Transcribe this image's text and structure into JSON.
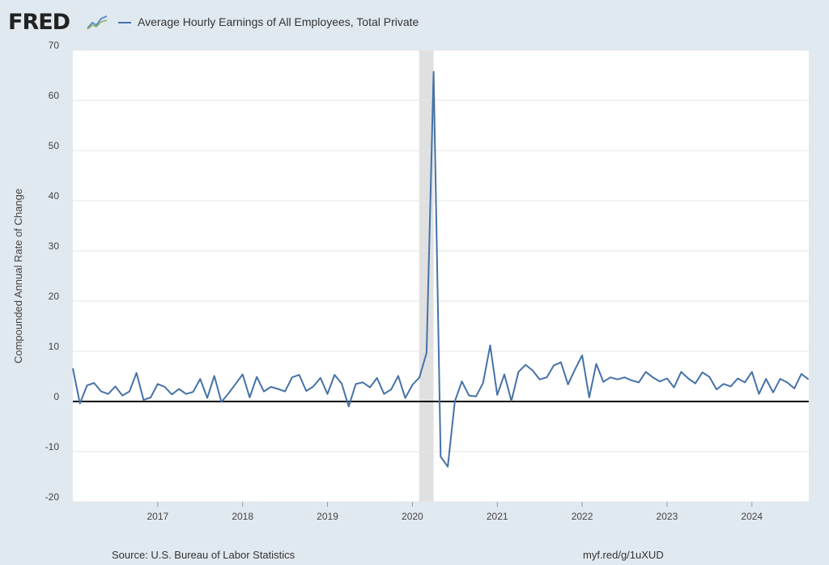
{
  "header": {
    "logo_text": "FRED",
    "logo_icon": "fred-chart-icon",
    "legend_label": "Average Hourly Earnings of All Employees, Total Private"
  },
  "footer": {
    "source": "Source: U.S. Bureau of Labor Statistics",
    "url": "myf.red/g/1uXUD"
  },
  "colors": {
    "line": "#4572a7",
    "recession": "#e0e0e0",
    "zero_line": "#000000",
    "plot_bg": "#ffffff",
    "page_bg": "#e1e9f0"
  },
  "chart_data": {
    "type": "line",
    "title": "Average Hourly Earnings of All Employees, Total Private",
    "xlabel": "",
    "ylabel": "Compounded Annual Rate of Change",
    "ylim": [
      -20,
      70
    ],
    "yticks": [
      -20,
      -10,
      0,
      10,
      20,
      30,
      40,
      50,
      60,
      70
    ],
    "xlim": [
      2016.0,
      2024.67
    ],
    "xticks": [
      2017,
      2018,
      2019,
      2020,
      2021,
      2022,
      2023,
      2024
    ],
    "recession": [
      2020.08,
      2020.25
    ],
    "zero_line": 0,
    "series": [
      {
        "name": "Average Hourly Earnings of All Employees, Total Private",
        "start": 2016.0,
        "frequency": "monthly",
        "values": [
          6.6,
          -0.4,
          3.2,
          3.7,
          2.0,
          1.5,
          3.0,
          1.2,
          2.0,
          5.7,
          0.3,
          0.8,
          3.5,
          2.9,
          1.4,
          2.5,
          1.5,
          1.9,
          4.5,
          0.7,
          5.1,
          -0.1,
          1.6,
          3.5,
          5.4,
          0.8,
          4.9,
          2.0,
          2.9,
          2.5,
          2.0,
          4.8,
          5.3,
          2.1,
          3.0,
          4.7,
          1.5,
          5.3,
          3.6,
          -1.0,
          3.5,
          3.8,
          2.8,
          4.7,
          1.5,
          2.4,
          5.1,
          0.7,
          3.3,
          4.8,
          9.7,
          65.7,
          -11.0,
          -13.0,
          0.0,
          4.0,
          1.2,
          1.0,
          3.7,
          11.2,
          1.3,
          5.4,
          0.1,
          5.9,
          7.3,
          6.2,
          4.4,
          4.8,
          7.2,
          7.8,
          3.4,
          6.4,
          9.2,
          0.8,
          7.5,
          3.9,
          4.8,
          4.4,
          4.8,
          4.2,
          3.8,
          5.9,
          4.8,
          4.0,
          4.6,
          2.8,
          5.9,
          4.6,
          3.6,
          5.8,
          4.9,
          2.4,
          3.5,
          3.0,
          4.6,
          3.8,
          5.9,
          1.5,
          4.5,
          1.8,
          4.5,
          3.8,
          2.6,
          5.5,
          4.4
        ]
      }
    ]
  }
}
